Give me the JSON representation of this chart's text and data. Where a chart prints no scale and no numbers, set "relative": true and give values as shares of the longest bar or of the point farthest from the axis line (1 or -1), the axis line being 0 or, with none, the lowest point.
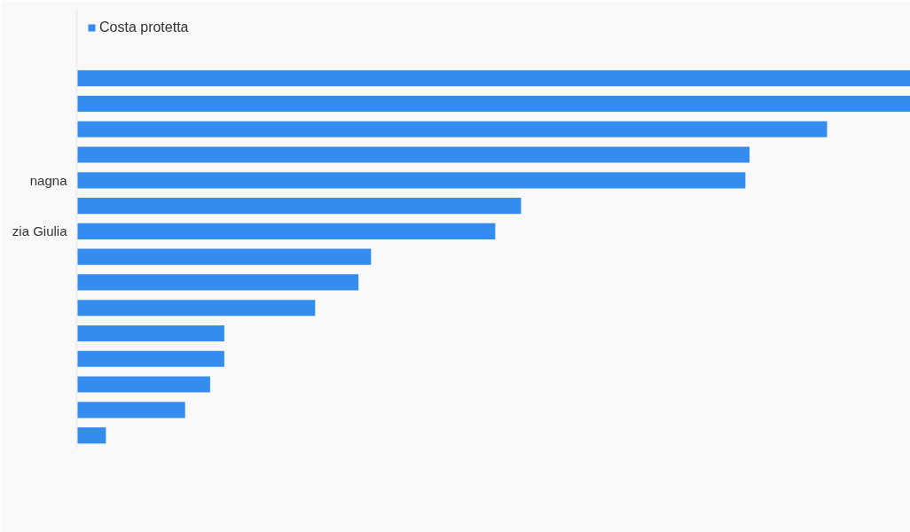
{
  "chart_data": {
    "type": "bar",
    "orientation": "horizontal",
    "relative": true,
    "categories": [
      null,
      null,
      null,
      null,
      "nagna",
      null,
      "zia Giulia",
      null,
      null,
      null,
      null,
      null,
      null,
      null,
      null
    ],
    "series": [
      {
        "name": "Costa protetta",
        "color": "#348ded",
        "values": [
          1,
          1,
          0.9,
          0.807,
          0.802,
          0.533,
          0.502,
          0.353,
          0.338,
          0.286,
          0.177,
          0.177,
          0.16,
          0.13,
          0.035
        ]
      }
    ],
    "legend": "top left"
  }
}
